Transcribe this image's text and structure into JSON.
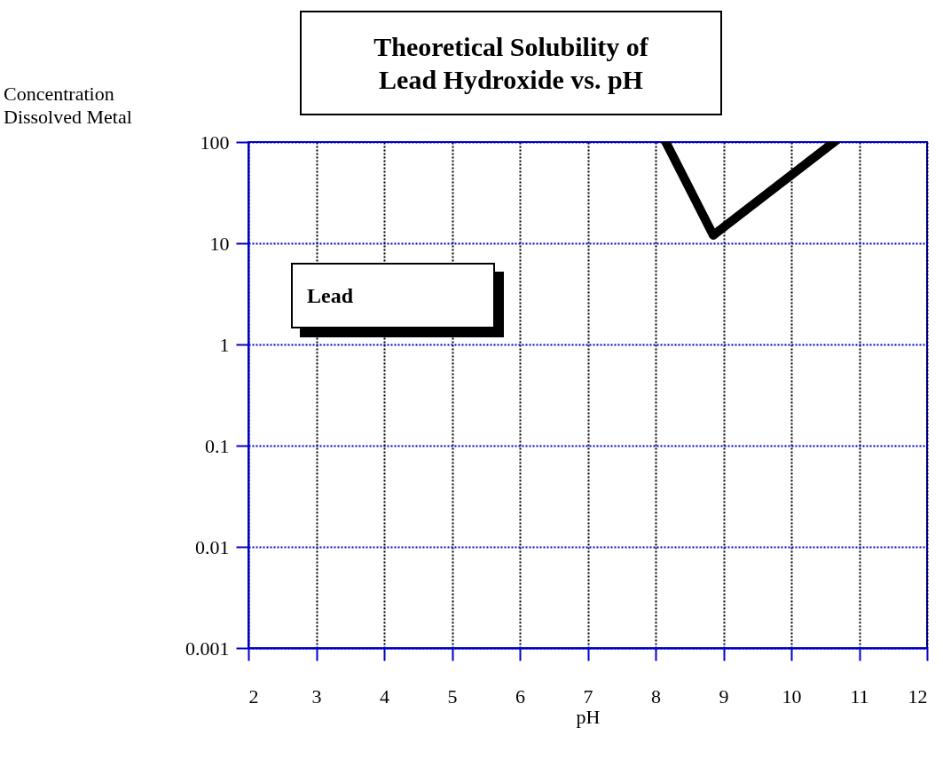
{
  "chart_data": {
    "type": "line",
    "title": "Theoretical Solubility of\nLead Hydroxide vs. pH",
    "xlabel": "pH",
    "ylabel": "Concentration\nDissolved Metal",
    "annotations": [
      "Lead"
    ],
    "series": [
      {
        "x": [
          8.15,
          8.85,
          10.63
        ],
        "values": [
          100,
          12,
          100
        ],
        "color": "#000000"
      }
    ],
    "xlim": [
      2,
      12
    ],
    "xticks": [
      2,
      3,
      4,
      5,
      6,
      7,
      8,
      9,
      10,
      11,
      12
    ],
    "ylim": [
      0.001,
      100
    ],
    "yticks": [
      0.001,
      0.01,
      0.1,
      1,
      10,
      100
    ],
    "log": true,
    "grid": true,
    "line_style": "solid"
  }
}
